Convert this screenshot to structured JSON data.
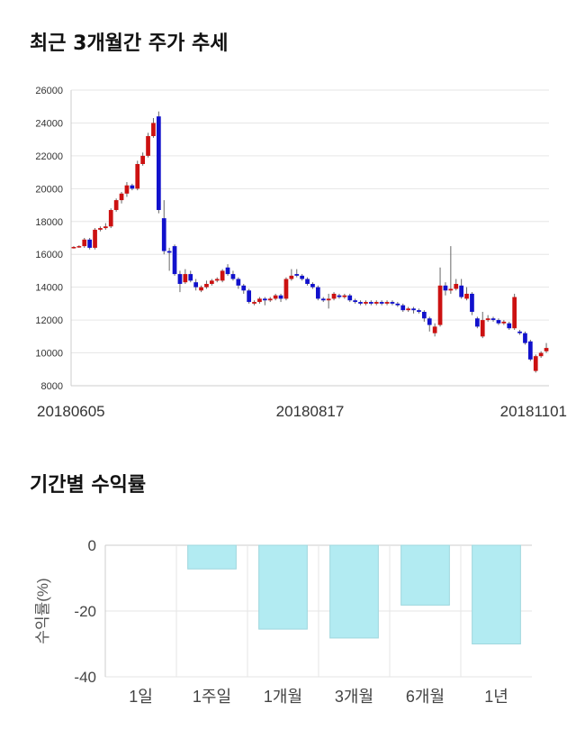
{
  "titles": {
    "price_trend": "최근 3개월간 주가 추세",
    "returns": "기간별 수익률"
  },
  "colors": {
    "up": "#cc1111",
    "down": "#1111cc",
    "return_bar": "#b2ebf2",
    "return_bar_edge": "#9fd7de",
    "grid": "#e6e6e6"
  },
  "chart_data": [
    {
      "type": "candlestick",
      "title": "최근 3개월간 주가 추세",
      "ylim": [
        8000,
        26000
      ],
      "yticks": [
        8000,
        10000,
        12000,
        14000,
        16000,
        18000,
        20000,
        22000,
        24000,
        26000
      ],
      "xtick_labels": [
        "20180605",
        "20180817",
        "20181101"
      ],
      "grid": "horizontal",
      "candles": [
        [
          16400,
          16450,
          16350,
          16500
        ],
        [
          16450,
          16500,
          16400,
          16550
        ],
        [
          16500,
          16900,
          16400,
          17000
        ],
        [
          16900,
          16400,
          16300,
          17000
        ],
        [
          16400,
          17500,
          16300,
          17600
        ],
        [
          17500,
          17600,
          17400,
          17700
        ],
        [
          17600,
          17700,
          17500,
          17900
        ],
        [
          17700,
          18700,
          17600,
          18800
        ],
        [
          18700,
          19300,
          18600,
          19400
        ],
        [
          19300,
          19700,
          19100,
          19800
        ],
        [
          19700,
          20200,
          19500,
          20400
        ],
        [
          20200,
          20000,
          19900,
          20300
        ],
        [
          20000,
          21500,
          19900,
          21700
        ],
        [
          21500,
          22000,
          21400,
          22200
        ],
        [
          22000,
          23200,
          21900,
          23400
        ],
        [
          23200,
          24000,
          23100,
          24300
        ],
        [
          24400,
          18700,
          18500,
          24700
        ],
        [
          18200,
          16200,
          16000,
          19300
        ],
        [
          16200,
          16100,
          15000,
          16400
        ],
        [
          16500,
          14800,
          14700,
          16600
        ],
        [
          14800,
          14200,
          13700,
          15000
        ],
        [
          14300,
          14800,
          14200,
          15100
        ],
        [
          14800,
          14400,
          14300,
          15000
        ],
        [
          14300,
          14000,
          13800,
          14500
        ],
        [
          13800,
          14000,
          13700,
          14100
        ],
        [
          14000,
          14200,
          13900,
          14400
        ],
        [
          14200,
          14400,
          14100,
          14500
        ],
        [
          14400,
          14500,
          14300,
          14600
        ],
        [
          14400,
          15000,
          14300,
          15100
        ],
        [
          15200,
          14800,
          14700,
          15400
        ],
        [
          14800,
          14500,
          14400,
          15000
        ],
        [
          14500,
          14100,
          13900,
          14600
        ],
        [
          14100,
          13800,
          13600,
          14200
        ],
        [
          13800,
          13100,
          13000,
          13900
        ],
        [
          13000,
          13100,
          12900,
          13200
        ],
        [
          13100,
          13300,
          13000,
          13400
        ],
        [
          13300,
          13200,
          12900,
          13400
        ],
        [
          13200,
          13300,
          13100,
          13400
        ],
        [
          13300,
          13500,
          13200,
          13600
        ],
        [
          13500,
          13300,
          13100,
          13600
        ],
        [
          13300,
          14500,
          13200,
          14600
        ],
        [
          14500,
          14700,
          14400,
          15100
        ],
        [
          14800,
          14700,
          14600,
          15100
        ],
        [
          14700,
          14500,
          14400,
          14800
        ],
        [
          14500,
          14200,
          14100,
          14600
        ],
        [
          14200,
          14000,
          13900,
          14300
        ],
        [
          14000,
          13300,
          13200,
          14100
        ],
        [
          13300,
          13200,
          13100,
          13400
        ],
        [
          13200,
          13300,
          12700,
          13600
        ],
        [
          13300,
          13600,
          13200,
          13700
        ],
        [
          13500,
          13400,
          13300,
          13600
        ],
        [
          13400,
          13500,
          13300,
          13600
        ],
        [
          13500,
          13200,
          13100,
          13600
        ],
        [
          13200,
          13100,
          13000,
          13300
        ],
        [
          13100,
          13000,
          12900,
          13200
        ],
        [
          13000,
          13100,
          12900,
          13200
        ],
        [
          13100,
          13000,
          12900,
          13200
        ],
        [
          13000,
          13100,
          12900,
          13200
        ],
        [
          13100,
          13000,
          12900,
          13200
        ],
        [
          13000,
          13100,
          12900,
          13200
        ],
        [
          13100,
          13000,
          12900,
          13200
        ],
        [
          13000,
          12900,
          12800,
          13100
        ],
        [
          12900,
          12600,
          12500,
          13000
        ],
        [
          12600,
          12700,
          12500,
          12800
        ],
        [
          12700,
          12600,
          12400,
          12800
        ],
        [
          12600,
          12500,
          12400,
          12700
        ],
        [
          12500,
          12100,
          11900,
          12600
        ],
        [
          12100,
          11700,
          11300,
          12200
        ],
        [
          11200,
          11600,
          11000,
          11800
        ],
        [
          11700,
          14100,
          11600,
          15200
        ],
        [
          14100,
          13800,
          13500,
          14300
        ],
        [
          13800,
          13900,
          13600,
          16500
        ],
        [
          13900,
          14200,
          13800,
          14500
        ],
        [
          14100,
          13400,
          13300,
          14500
        ],
        [
          13300,
          13600,
          13200,
          14000
        ],
        [
          13600,
          12500,
          12300,
          13700
        ],
        [
          12100,
          11600,
          11500,
          12200
        ],
        [
          11000,
          12000,
          10900,
          12500
        ],
        [
          12000,
          12100,
          11900,
          12300
        ],
        [
          12100,
          12000,
          11900,
          12200
        ],
        [
          12000,
          11800,
          11700,
          12100
        ],
        [
          11800,
          11900,
          11700,
          12000
        ],
        [
          11800,
          11500,
          11400,
          11900
        ],
        [
          11500,
          13400,
          11400,
          13600
        ],
        [
          11300,
          11200,
          11100,
          11400
        ],
        [
          11200,
          10600,
          10500,
          11300
        ],
        [
          10700,
          9600,
          9500,
          10800
        ],
        [
          8900,
          9800,
          8800,
          9900
        ],
        [
          9800,
          10000,
          9700,
          10100
        ],
        [
          10100,
          10300,
          10000,
          10600
        ]
      ]
    },
    {
      "type": "bar",
      "categories": [
        "1일",
        "1주일",
        "1개월",
        "3개월",
        "6개월",
        "1년"
      ],
      "values": [
        0,
        -7.2,
        -25.5,
        -28.2,
        -18.2,
        -30.0
      ],
      "ylabel": "수익률(%)",
      "ylim": [
        -40,
        0
      ],
      "yticks": [
        0,
        -20,
        -40
      ],
      "grid": "both"
    }
  ]
}
